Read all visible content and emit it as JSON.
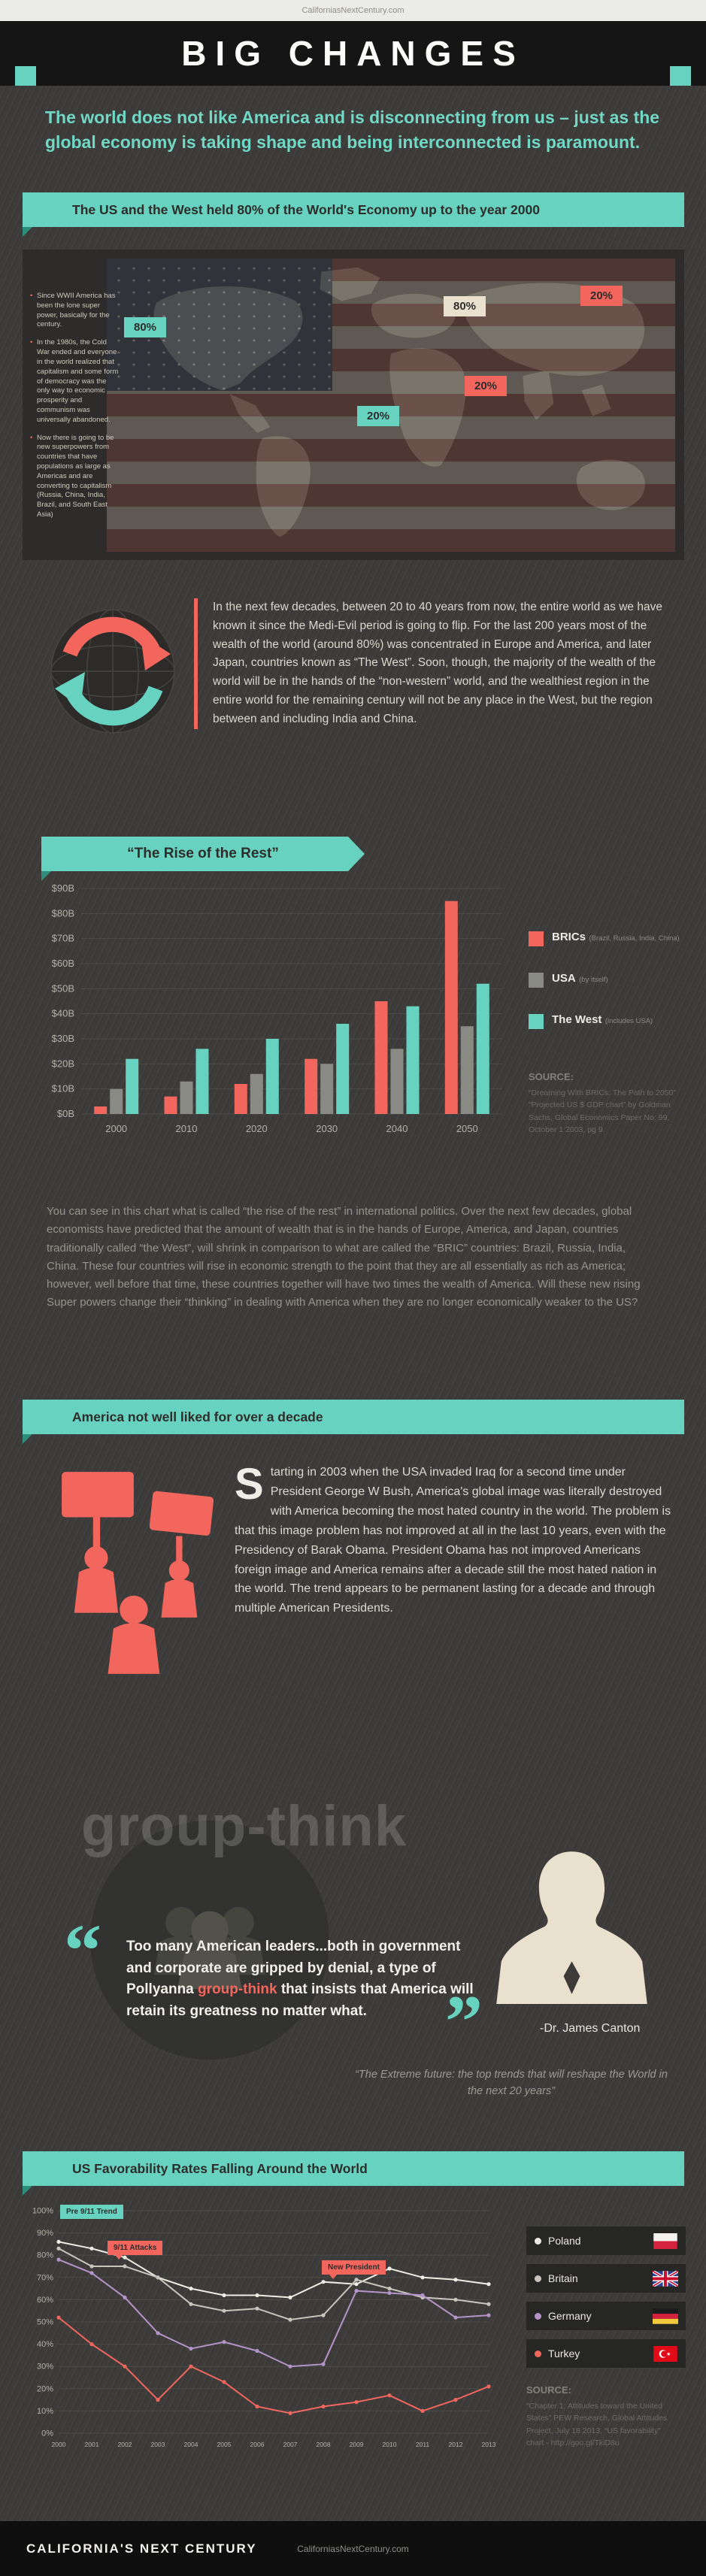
{
  "topbar": {
    "site": "CaliforniasNextCentury.com"
  },
  "header": {
    "title": "BIG CHANGES"
  },
  "intro": {
    "text": "The world does not like America and is disconnecting from us – just as the global economy is taking shape and being interconnected is paramount."
  },
  "economy": {
    "banner": "The US and the West held 80% of the World's Economy up to the year 2000",
    "bullets": [
      "Since WWII America has been the lone super power, basically for the century.",
      "In the 1980s, the Cold War ended and everyone in the world realized that capitalism and some form of democracy was the only way to economic prosperity and communism was universally abandoned.",
      "Now there is going to be new superpowers from countries that have populations as large as Americas and are converting to capitalism (Russia, China, India, Brazil, and South East Asia)"
    ],
    "map_labels": [
      {
        "value": "80%",
        "style": "teal"
      },
      {
        "value": "80%",
        "style": "cream"
      },
      {
        "value": "20%",
        "style": "red"
      },
      {
        "value": "20%",
        "style": "teal"
      },
      {
        "value": "20%",
        "style": "red"
      }
    ]
  },
  "flip": {
    "paragraph": "In the next few decades, between 20 to 40 years from now, the entire world as we have known it since the Medi-Evil period is going to flip. For the last 200 years most of the wealth of the world (around 80%) was concentrated in Europe and America, and later Japan, countries known as “The West”. Soon, though, the majority of the wealth of the world will be in the hands of the “non-western” world, and the wealthiest region in the entire world for the remaining century will not be any place in the West, but the region between and including India and China."
  },
  "rise": {
    "banner": "“The Rise of the Rest”",
    "source_label": "SOURCE:",
    "source_lines": [
      "“Dreaming With BRICs: The Path to 2050”",
      "“Projected US $ GDP chart” by Goldman",
      "Sachs, Global Economics Paper No: 99,",
      "October 1 2003, pg 9."
    ],
    "paragraph": "You can see in this chart what is called “the rise of the rest” in international politics. Over the next few decades, global economists have predicted that the amount of wealth that is in the hands of Europe, America, and Japan, countries traditionally called “the West”, will shrink in comparison to what are called the “BRIC” countries: Brazil, Russia, India, China. These four countries will rise in economic strength to the point that they are all essentially as rich as America; however, well before that time, these countries together will have two times the wealth of America. Will these new rising Super powers change their “thinking” in dealing with America when they are no longer economically weaker to the US?"
  },
  "hated": {
    "banner": "America not well liked for over a decade",
    "dropcap": "S",
    "paragraph_rest": "tarting in 2003 when the USA invaded Iraq for a second time under President George W Bush, America's global image was literally destroyed with America becoming the most hated country in the world. The problem is that this image problem has not improved at all in the last 10 years, even with the Presidency of Barak Obama.  President Obama has not improved Americans foreign image and America remains after a decade still the most hated nation in the world. The trend appears to be permanent lasting for a decade and through multiple American Presidents."
  },
  "groupthink": {
    "watermark": "group-think",
    "quote_pre": "Too many American leaders...both in government and corporate are gripped by denial, a type of Pollyanna ",
    "quote_highlight": "group-think",
    "quote_post": " that insists that America will retain its greatness no matter what.",
    "open_quote": "“",
    "close_quote": "”",
    "attribution": "-Dr. James Canton",
    "book": "“The Extreme future: the top trends that will reshape the World in the next 20 years”"
  },
  "favorability": {
    "banner": "US Favorability Rates Falling Around the World",
    "annotations": [
      "Pre 9/11 Trend",
      "9/11 Attacks",
      "New President"
    ],
    "source_label": "SOURCE:",
    "source_lines": [
      "“Chapter 1: Attitudes toward the United",
      "States” PEW Research, Global Attitudes",
      "Project, July 18 2013, “US favorability”",
      "chart - http://goo.gl/TkiD8u"
    ]
  },
  "footer": {
    "logo": "CALIFORNIA'S NEXT CENTURY",
    "site": "CaliforniasNextCentury.com"
  },
  "colors": {
    "teal": "#67d2bf",
    "red": "#f2665e",
    "cream": "#e9e1cd",
    "background": "#3d3c3a",
    "header": "#151515"
  },
  "chart_data": [
    {
      "type": "bar",
      "title": "Projected US $ GDP",
      "categories": [
        "2000",
        "2010",
        "2020",
        "2030",
        "2040",
        "2050"
      ],
      "series": [
        {
          "name": "BRICs",
          "note": "(Brazil, Russia, India, China)",
          "color": "#f2665e",
          "values": [
            3,
            7,
            12,
            22,
            45,
            85
          ]
        },
        {
          "name": "USA",
          "note": "(by itself)",
          "color": "#8a8a85",
          "values": [
            10,
            13,
            16,
            20,
            26,
            35
          ]
        },
        {
          "name": "The West",
          "note": "(includes USA)",
          "color": "#67d2bf",
          "values": [
            22,
            26,
            30,
            36,
            43,
            52
          ]
        }
      ],
      "ylim": [
        0,
        90
      ],
      "ytick_step": 10,
      "ytick_format": "$%dB",
      "grid": true,
      "legend_position": "right"
    },
    {
      "type": "line",
      "title": "US Favorability Rates",
      "x": [
        2000,
        2001,
        2002,
        2003,
        2004,
        2005,
        2006,
        2007,
        2008,
        2009,
        2010,
        2011,
        2012,
        2013
      ],
      "series": [
        {
          "name": "Poland",
          "color": "#efece3",
          "values": [
            86,
            83,
            79,
            70,
            65,
            62,
            62,
            61,
            68,
            67,
            74,
            70,
            69,
            67
          ]
        },
        {
          "name": "Britain",
          "color": "#c9c5bc",
          "values": [
            83,
            75,
            75,
            70,
            58,
            55,
            56,
            51,
            53,
            69,
            65,
            61,
            60,
            58
          ]
        },
        {
          "name": "Germany",
          "color": "#b493c8",
          "values": [
            78,
            72,
            61,
            45,
            38,
            41,
            37,
            30,
            31,
            64,
            63,
            62,
            52,
            53
          ]
        },
        {
          "name": "Turkey",
          "color": "#f2665e",
          "values": [
            52,
            40,
            30,
            15,
            30,
            23,
            12,
            9,
            12,
            14,
            17,
            10,
            15,
            21
          ]
        }
      ],
      "ylim": [
        0,
        100
      ],
      "ytick_step": 10,
      "ytick_format": "%d%%",
      "grid": true,
      "legend_position": "right"
    }
  ]
}
